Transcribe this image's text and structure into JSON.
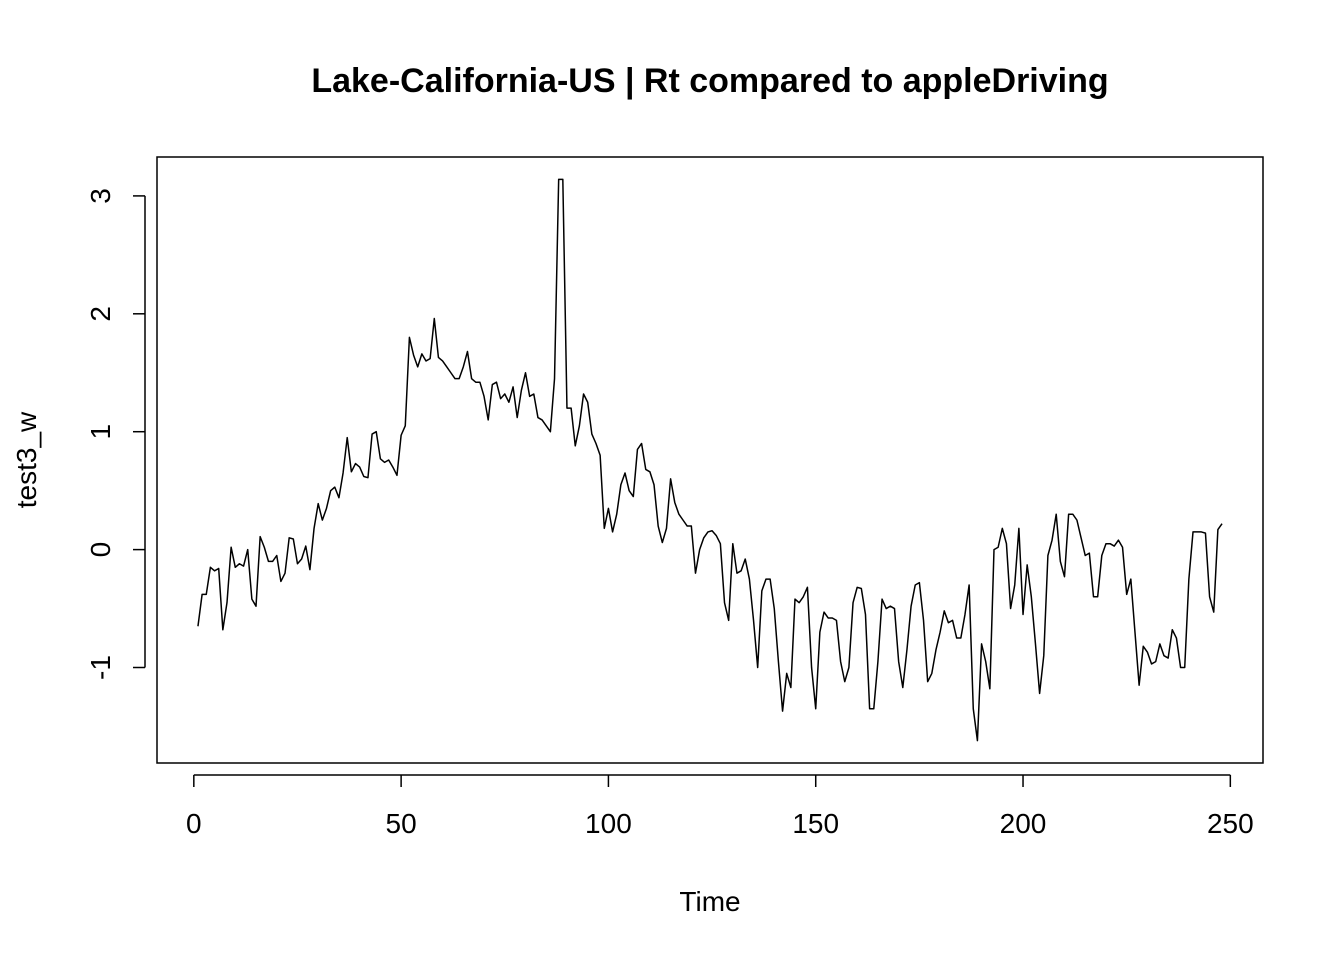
{
  "chart_data": {
    "type": "line",
    "title": "Lake-California-US | Rt compared to appleDriving",
    "xlabel": "Time",
    "ylabel": "test3_w",
    "xlim": [
      -8.88,
      257.88
    ],
    "ylim": [
      -1.81,
      3.33
    ],
    "xticks": [
      0,
      50,
      100,
      150,
      200,
      250
    ],
    "yticks": [
      -1,
      0,
      1,
      2,
      3
    ],
    "x": [
      1,
      2,
      3,
      4,
      5,
      6,
      7,
      8,
      9,
      10,
      11,
      12,
      13,
      14,
      15,
      16,
      17,
      18,
      19,
      20,
      21,
      22,
      23,
      24,
      25,
      26,
      27,
      28,
      29,
      30,
      31,
      32,
      33,
      34,
      35,
      36,
      37,
      38,
      39,
      40,
      41,
      42,
      43,
      44,
      45,
      46,
      47,
      48,
      49,
      50,
      51,
      52,
      53,
      54,
      55,
      56,
      57,
      58,
      59,
      60,
      61,
      62,
      63,
      64,
      65,
      66,
      67,
      68,
      69,
      70,
      71,
      72,
      73,
      74,
      75,
      76,
      77,
      78,
      79,
      80,
      81,
      82,
      83,
      84,
      85,
      86,
      87,
      88,
      89,
      90,
      91,
      92,
      93,
      94,
      95,
      96,
      97,
      98,
      99,
      100,
      101,
      102,
      103,
      104,
      105,
      106,
      107,
      108,
      109,
      110,
      111,
      112,
      113,
      114,
      115,
      116,
      117,
      118,
      119,
      120,
      121,
      122,
      123,
      124,
      125,
      126,
      127,
      128,
      129,
      130,
      131,
      132,
      133,
      134,
      135,
      136,
      137,
      138,
      139,
      140,
      141,
      142,
      143,
      144,
      145,
      146,
      147,
      148,
      149,
      150,
      151,
      152,
      153,
      154,
      155,
      156,
      157,
      158,
      159,
      160,
      161,
      162,
      163,
      164,
      165,
      166,
      167,
      168,
      169,
      170,
      171,
      172,
      173,
      174,
      175,
      176,
      177,
      178,
      179,
      180,
      181,
      182,
      183,
      184,
      185,
      186,
      187,
      188,
      189,
      190,
      191,
      192,
      193,
      194,
      195,
      196,
      197,
      198,
      199,
      200,
      201,
      202,
      203,
      204,
      205,
      206,
      207,
      208,
      209,
      210,
      211,
      212,
      213,
      214,
      215,
      216,
      217,
      218,
      219,
      220,
      221,
      222,
      223,
      224,
      225,
      226,
      227,
      228,
      229,
      230,
      231,
      232,
      233,
      234,
      235,
      236,
      237,
      238,
      239,
      240,
      241,
      242,
      243,
      244,
      245,
      246,
      247,
      248
    ],
    "series": [
      {
        "color": "#000000",
        "values": [
          -0.65,
          -0.38,
          -0.38,
          -0.15,
          -0.18,
          -0.16,
          -0.68,
          -0.45,
          0.02,
          -0.15,
          -0.12,
          -0.14,
          0.0,
          -0.42,
          -0.48,
          0.11,
          0.02,
          -0.1,
          -0.1,
          -0.05,
          -0.27,
          -0.2,
          0.1,
          0.09,
          -0.12,
          -0.08,
          0.03,
          -0.17,
          0.18,
          0.39,
          0.25,
          0.35,
          0.5,
          0.53,
          0.44,
          0.65,
          0.95,
          0.66,
          0.73,
          0.7,
          0.62,
          0.61,
          0.98,
          1.0,
          0.77,
          0.74,
          0.76,
          0.7,
          0.63,
          0.97,
          1.05,
          1.8,
          1.65,
          1.55,
          1.66,
          1.6,
          1.62,
          1.96,
          1.63,
          1.6,
          1.55,
          1.5,
          1.45,
          1.45,
          1.55,
          1.68,
          1.45,
          1.42,
          1.42,
          1.3,
          1.1,
          1.4,
          1.42,
          1.28,
          1.32,
          1.25,
          1.38,
          1.12,
          1.35,
          1.5,
          1.3,
          1.32,
          1.12,
          1.1,
          1.05,
          1.0,
          1.45,
          3.14,
          3.14,
          1.2,
          1.2,
          0.88,
          1.05,
          1.32,
          1.25,
          0.98,
          0.9,
          0.8,
          0.18,
          0.35,
          0.15,
          0.3,
          0.55,
          0.65,
          0.5,
          0.45,
          0.85,
          0.9,
          0.68,
          0.66,
          0.55,
          0.2,
          0.06,
          0.18,
          0.6,
          0.4,
          0.3,
          0.25,
          0.2,
          0.2,
          -0.2,
          0.0,
          0.1,
          0.15,
          0.16,
          0.12,
          0.05,
          -0.45,
          -0.6,
          0.05,
          -0.2,
          -0.18,
          -0.08,
          -0.25,
          -0.6,
          -1.0,
          -0.35,
          -0.25,
          -0.25,
          -0.5,
          -0.95,
          -1.37,
          -1.05,
          -1.17,
          -0.42,
          -0.45,
          -0.4,
          -0.32,
          -1.0,
          -1.35,
          -0.7,
          -0.53,
          -0.58,
          -0.58,
          -0.6,
          -0.95,
          -1.12,
          -1.0,
          -0.45,
          -0.32,
          -0.33,
          -0.55,
          -1.35,
          -1.35,
          -0.95,
          -0.42,
          -0.5,
          -0.48,
          -0.5,
          -0.95,
          -1.17,
          -0.85,
          -0.48,
          -0.3,
          -0.28,
          -0.6,
          -1.12,
          -1.05,
          -0.85,
          -0.7,
          -0.52,
          -0.62,
          -0.6,
          -0.75,
          -0.75,
          -0.55,
          -0.3,
          -1.35,
          -1.62,
          -0.8,
          -0.95,
          -1.18,
          0.0,
          0.02,
          0.18,
          0.05,
          -0.5,
          -0.3,
          0.18,
          -0.55,
          -0.13,
          -0.4,
          -0.8,
          -1.22,
          -0.9,
          -0.05,
          0.08,
          0.3,
          -0.1,
          -0.23,
          0.3,
          0.3,
          0.25,
          0.1,
          -0.05,
          -0.03,
          -0.4,
          -0.4,
          -0.05,
          0.05,
          0.05,
          0.03,
          0.08,
          0.02,
          -0.38,
          -0.25,
          -0.7,
          -1.15,
          -0.82,
          -0.87,
          -0.97,
          -0.95,
          -0.8,
          -0.9,
          -0.92,
          -0.68,
          -0.75,
          -1.0,
          -1.0,
          -0.25,
          0.15,
          0.15,
          0.15,
          0.14,
          -0.4,
          -0.53,
          0.17,
          0.22
        ]
      }
    ]
  }
}
